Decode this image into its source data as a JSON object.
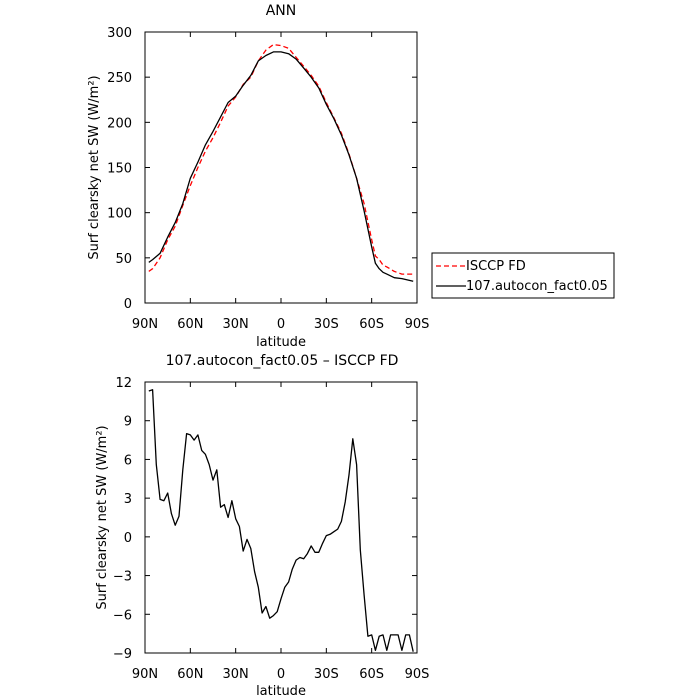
{
  "chart_data": [
    {
      "type": "line",
      "title": "ANN",
      "xlabel": "latitude",
      "ylabel": "Surf clearsky net SW (W/m²)",
      "xlim": [
        90,
        -90
      ],
      "ylim": [
        0,
        300
      ],
      "xticks": [
        90,
        60,
        30,
        0,
        -30,
        -60,
        -90
      ],
      "xtick_labels": [
        "90N",
        "60N",
        "30N",
        "0",
        "30S",
        "60S",
        "90S"
      ],
      "yticks": [
        0,
        50,
        100,
        150,
        200,
        250,
        300
      ],
      "ytick_labels": [
        "0",
        "50",
        "100",
        "150",
        "200",
        "250",
        "300"
      ],
      "legend_position": "right",
      "series": [
        {
          "name": "ISCCP FD",
          "color": "#ff0000",
          "dash": true,
          "x": [
            87.5,
            85,
            80,
            75,
            70,
            65,
            60,
            55,
            50,
            45,
            40,
            35,
            30,
            25,
            20,
            15,
            10,
            5,
            0,
            -5,
            -10,
            -15,
            -20,
            -25,
            -30,
            -35,
            -40,
            -45,
            -50,
            -55,
            -60,
            -62.5,
            -65,
            -67.5,
            -70,
            -75,
            -80,
            -85,
            -87.5
          ],
          "y": [
            35,
            38,
            50,
            70,
            85,
            108,
            130,
            150,
            168,
            183,
            200,
            218,
            228,
            242,
            250,
            268,
            280,
            286,
            285,
            282,
            272,
            262,
            252,
            240,
            222,
            205,
            188,
            165,
            138,
            110,
            70,
            52,
            48,
            42,
            40,
            35,
            32,
            32,
            32
          ]
        },
        {
          "name": "107.autocon_fact0.05",
          "color": "#000000",
          "dash": false,
          "x": [
            87.5,
            85,
            80,
            75,
            70,
            65,
            60,
            55,
            50,
            45,
            40,
            35,
            30,
            25,
            20,
            15,
            10,
            5,
            0,
            -5,
            -10,
            -15,
            -20,
            -25,
            -30,
            -35,
            -40,
            -45,
            -50,
            -55,
            -60,
            -62.5,
            -65,
            -67.5,
            -70,
            -75,
            -80,
            -85,
            -87.5
          ],
          "y": [
            45,
            48,
            55,
            73,
            89,
            110,
            138,
            156,
            175,
            190,
            206,
            222,
            229,
            241,
            252,
            268,
            274,
            278,
            278,
            276,
            270,
            260,
            250,
            238,
            220,
            204,
            186,
            164,
            138,
            102,
            62,
            44,
            38,
            34,
            32,
            28,
            27,
            25,
            24
          ]
        }
      ]
    },
    {
      "type": "line",
      "title": "107.autocon_fact0.05 – ISCCP FD",
      "xlabel": "latitude",
      "ylabel": "Surf clearsky net SW (W/m²)",
      "xlim": [
        90,
        -90
      ],
      "ylim": [
        -9,
        12
      ],
      "xticks": [
        90,
        60,
        30,
        0,
        -30,
        -60,
        -90
      ],
      "xtick_labels": [
        "90N",
        "60N",
        "30N",
        "0",
        "30S",
        "60S",
        "90S"
      ],
      "yticks": [
        -9,
        -6,
        -3,
        0,
        3,
        6,
        9,
        12
      ],
      "ytick_labels": [
        "−9",
        "−6",
        "−3",
        "0",
        "3",
        "6",
        "9",
        "12"
      ],
      "series": [
        {
          "color": "#000000",
          "dash": false,
          "x": [
            87.5,
            85,
            82.5,
            80,
            77.5,
            75,
            72.5,
            70,
            67.5,
            65,
            62.5,
            60,
            57.5,
            55,
            52.5,
            50,
            47.5,
            45,
            42.5,
            40,
            37.5,
            35,
            32.5,
            30,
            27.5,
            25,
            22.5,
            20,
            17.5,
            15,
            12.5,
            10,
            7.5,
            5,
            2.5,
            0,
            -2.5,
            -5,
            -7.5,
            -10,
            -12.5,
            -15,
            -17.5,
            -20,
            -22.5,
            -25,
            -27.5,
            -30,
            -32.5,
            -35,
            -37.5,
            -40,
            -42.5,
            -45,
            -47.5,
            -50,
            -52.5,
            -55,
            -57.5,
            -60,
            -62.5,
            -65,
            -67.5,
            -70,
            -72.5,
            -75,
            -77.5,
            -80,
            -82.5,
            -85,
            -87.5
          ],
          "y": [
            11.3,
            11.4,
            5.6,
            2.9,
            2.8,
            3.4,
            1.8,
            0.9,
            1.6,
            5.2,
            8.0,
            7.9,
            7.5,
            7.9,
            6.7,
            6.4,
            5.6,
            4.4,
            5.2,
            2.3,
            2.5,
            1.5,
            2.8,
            1.4,
            0.8,
            -1.1,
            -0.2,
            -0.9,
            -2.7,
            -3.9,
            -5.9,
            -5.4,
            -6.3,
            -6.1,
            -5.8,
            -4.8,
            -3.9,
            -3.5,
            -2.5,
            -1.8,
            -1.6,
            -1.7,
            -1.3,
            -0.7,
            -1.2,
            -1.2,
            -0.5,
            0.1,
            0.2,
            0.4,
            0.6,
            1.2,
            2.7,
            4.8,
            7.6,
            5.6,
            -1.0,
            -4.5,
            -7.7,
            -7.6,
            -8.8,
            -7.7,
            -7.6,
            -8.8,
            -7.6,
            -7.6,
            -7.6,
            -8.8,
            -7.6,
            -7.6,
            -8.9
          ]
        }
      ]
    }
  ]
}
